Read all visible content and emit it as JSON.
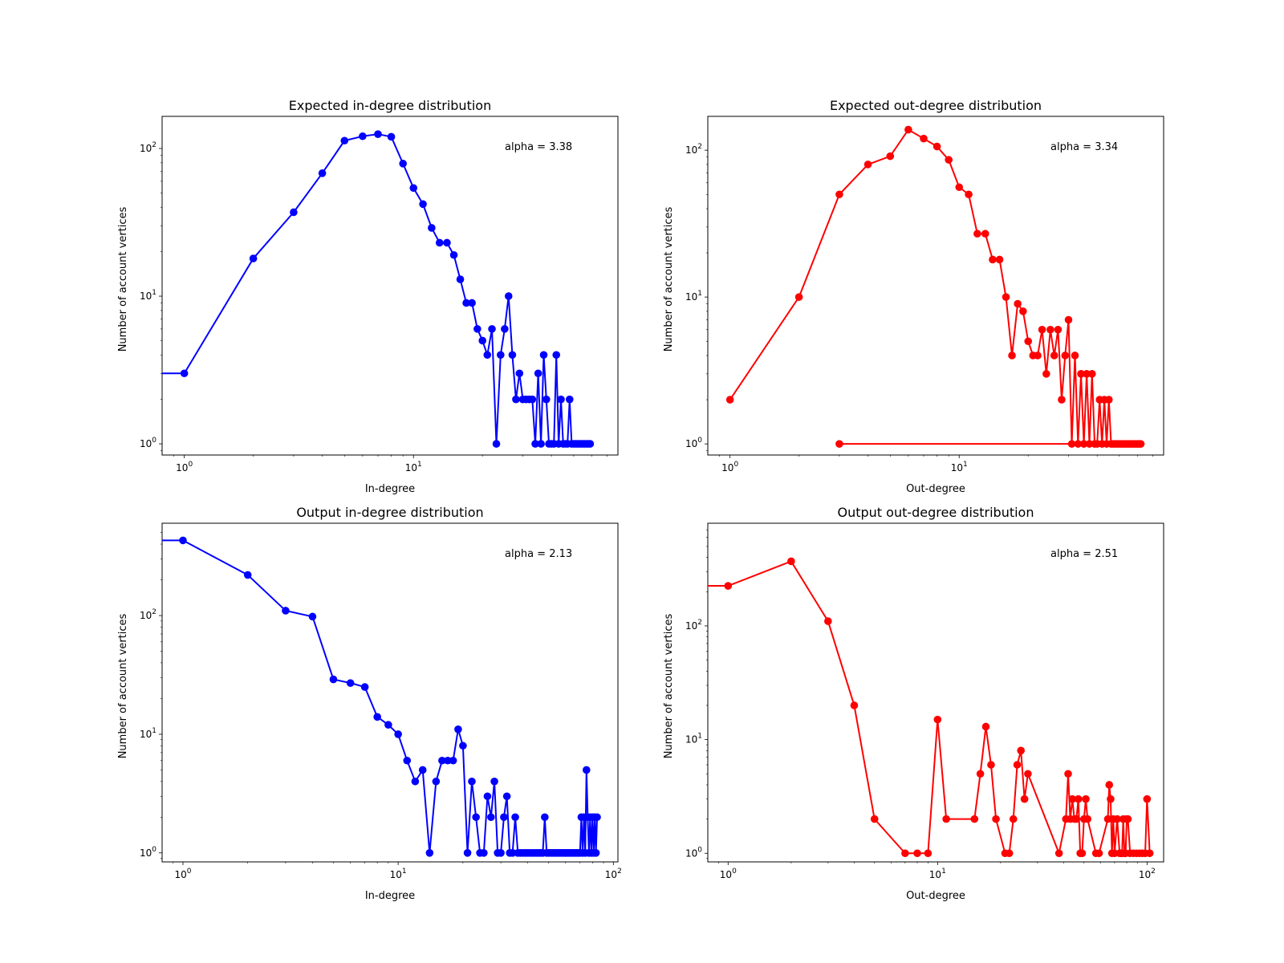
{
  "chart_data": [
    {
      "type": "line",
      "title": "Expected in-degree distribution",
      "xlabel": "In-degree",
      "ylabel": "Number of account vertices",
      "xscale": "log",
      "yscale": "log",
      "xlim": [
        0.8,
        78
      ],
      "ylim": [
        0.84,
        165
      ],
      "xticks": [
        {
          "value": 1,
          "label": "10^0"
        },
        {
          "value": 10,
          "label": "10^1"
        }
      ],
      "yticks": [
        {
          "value": 1,
          "label": "10^0"
        },
        {
          "value": 10,
          "label": "10^1"
        },
        {
          "value": 100,
          "label": "10^2"
        }
      ],
      "annotation": "alpha = 3.38",
      "color": "#0000ff",
      "series": [
        {
          "name": "Expected in-degree",
          "x": [
            0,
            1,
            2,
            3,
            4,
            5,
            6,
            7,
            8,
            9,
            10,
            11,
            12,
            13,
            14,
            15,
            16,
            17,
            18,
            19,
            20,
            21,
            22,
            23,
            24,
            25,
            26,
            27,
            28,
            29,
            30,
            31,
            32,
            33,
            34,
            35,
            36,
            37,
            38,
            39,
            40,
            41,
            42,
            43,
            44,
            45,
            46,
            47,
            48,
            49,
            50,
            51,
            52,
            53,
            54,
            55,
            56,
            57,
            58,
            59
          ],
          "y": [
            3,
            3,
            18,
            37,
            68,
            113,
            121,
            125,
            120,
            79,
            54,
            42,
            29,
            23,
            23,
            19,
            13,
            9,
            9,
            6,
            5,
            4,
            6,
            1,
            4,
            6,
            10,
            4,
            2,
            3,
            2,
            2,
            2,
            2,
            1,
            3,
            1,
            4,
            2,
            1,
            1,
            1,
            4,
            1,
            2,
            1,
            1,
            1,
            2,
            1,
            1,
            1,
            1,
            1,
            1,
            1,
            1,
            1,
            1,
            1
          ]
        }
      ]
    },
    {
      "type": "line",
      "title": "Expected out-degree distribution",
      "xlabel": "Out-degree",
      "ylabel": "Number of account vertices",
      "xscale": "log",
      "yscale": "log",
      "xlim": [
        0.8,
        78
      ],
      "ylim": [
        0.84,
        170
      ],
      "xticks": [
        {
          "value": 1,
          "label": "10^0"
        },
        {
          "value": 10,
          "label": "10^1"
        }
      ],
      "yticks": [
        {
          "value": 1,
          "label": "10^0"
        },
        {
          "value": 10,
          "label": "10^1"
        },
        {
          "value": 100,
          "label": "10^2"
        }
      ],
      "annotation": "alpha = 3.34",
      "color": "#ff0000",
      "series": [
        {
          "name": "Expected out-degree",
          "x": [
            1,
            2,
            3,
            4,
            5,
            6,
            7,
            8,
            9,
            10,
            11,
            12,
            13,
            14,
            15,
            16,
            17,
            18,
            19,
            20,
            21,
            22,
            23,
            24,
            25,
            26,
            27,
            28,
            29,
            30,
            31,
            32,
            33,
            34,
            35,
            36,
            37,
            38,
            39,
            40,
            41,
            42,
            43,
            44,
            45,
            46,
            47,
            48,
            49,
            50,
            51,
            52,
            53,
            54,
            55,
            56,
            57,
            58,
            59,
            60,
            61,
            62,
            3
          ],
          "y": [
            2,
            10,
            50,
            80,
            91,
            138,
            120,
            106,
            86,
            56,
            50,
            27,
            27,
            18,
            18,
            10,
            4,
            9,
            8,
            5,
            4,
            4,
            6,
            3,
            6,
            4,
            6,
            2,
            4,
            7,
            1,
            4,
            1,
            3,
            1,
            3,
            1,
            3,
            1,
            1,
            2,
            1,
            2,
            1,
            2,
            1,
            1,
            1,
            1,
            1,
            1,
            1,
            1,
            1,
            1,
            1,
            1,
            1,
            1,
            1,
            1,
            1,
            1
          ]
        }
      ]
    },
    {
      "type": "line",
      "title": "Output in-degree distribution",
      "xlabel": "In-degree",
      "ylabel": "Number of account vertices",
      "xscale": "log",
      "yscale": "log",
      "xlim": [
        0.8,
        105
      ],
      "ylim": [
        0.84,
        600
      ],
      "xticks": [
        {
          "value": 1,
          "label": "10^0"
        },
        {
          "value": 10,
          "label": "10^1"
        },
        {
          "value": 100,
          "label": "10^2"
        }
      ],
      "yticks": [
        {
          "value": 1,
          "label": "10^0"
        },
        {
          "value": 10,
          "label": "10^1"
        },
        {
          "value": 100,
          "label": "10^2"
        }
      ],
      "annotation": "alpha = 2.13",
      "color": "#0000ff",
      "series": [
        {
          "name": "Output in-degree",
          "x": [
            0,
            1,
            2,
            3,
            4,
            5,
            6,
            7,
            8,
            9,
            10,
            11,
            12,
            13,
            14,
            15,
            16,
            17,
            18,
            19,
            20,
            21,
            22,
            23,
            24,
            25,
            26,
            27,
            28,
            29,
            30,
            31,
            32,
            33,
            34,
            35,
            36,
            37,
            38,
            39,
            40,
            41,
            42,
            43,
            44,
            45,
            46,
            47,
            48,
            49,
            50,
            51,
            52,
            53,
            54,
            55,
            56,
            57,
            58,
            59,
            60,
            61,
            62,
            63,
            64,
            65,
            66,
            67,
            68,
            69,
            70,
            71,
            72,
            73,
            74,
            75,
            76,
            77,
            78,
            79,
            80,
            81,
            82,
            83,
            84
          ],
          "y": [
            430,
            430,
            220,
            110,
            98,
            29,
            27,
            25,
            14,
            12,
            10,
            6,
            4,
            5,
            1,
            4,
            6,
            6,
            6,
            11,
            8,
            1,
            4,
            2,
            1,
            1,
            3,
            2,
            4,
            1,
            1,
            2,
            3,
            1,
            1,
            2,
            1,
            1,
            1,
            1,
            1,
            1,
            1,
            1,
            1,
            1,
            1,
            1,
            2,
            1,
            1,
            1,
            1,
            1,
            1,
            1,
            1,
            1,
            1,
            1,
            1,
            1,
            1,
            1,
            1,
            1,
            1,
            1,
            1,
            1,
            1,
            2,
            1,
            2,
            1,
            5,
            2,
            1,
            2,
            1,
            2,
            1,
            2,
            1,
            2
          ]
        }
      ]
    },
    {
      "type": "line",
      "title": "Output out-degree distribution",
      "xlabel": "Out-degree",
      "ylabel": "Number of account vertices",
      "xscale": "log",
      "yscale": "log",
      "xlim": [
        0.8,
        120
      ],
      "ylim": [
        0.84,
        800
      ],
      "xticks": [
        {
          "value": 1,
          "label": "10^0"
        },
        {
          "value": 10,
          "label": "10^1"
        },
        {
          "value": 100,
          "label": "10^2"
        }
      ],
      "yticks": [
        {
          "value": 1,
          "label": "10^0"
        },
        {
          "value": 10,
          "label": "10^1"
        },
        {
          "value": 100,
          "label": "10^2"
        }
      ],
      "annotation": "alpha = 2.51",
      "color": "#ff0000",
      "series": [
        {
          "name": "Output out-degree",
          "x": [
            0,
            1,
            2,
            3,
            4,
            5,
            7,
            8,
            9,
            10,
            11,
            15,
            16,
            17,
            18,
            19,
            21,
            22,
            23,
            24,
            25,
            26,
            27,
            38,
            41,
            42,
            43,
            44,
            45,
            46,
            47,
            48,
            49,
            50,
            51,
            52,
            57,
            59,
            65,
            66,
            67,
            68,
            69,
            70,
            72,
            74,
            75,
            76,
            77,
            78,
            79,
            80,
            81,
            83,
            86,
            89,
            92,
            95,
            98,
            100,
            103
          ],
          "y": [
            225,
            225,
            370,
            110,
            20,
            2,
            1,
            1,
            1,
            15,
            2,
            2,
            5,
            13,
            6,
            2,
            1,
            1,
            2,
            6,
            8,
            3,
            5,
            1,
            2,
            5,
            2,
            3,
            2,
            2,
            3,
            1,
            1,
            2,
            3,
            2,
            1,
            1,
            2,
            4,
            3,
            1,
            2,
            1,
            2,
            1,
            1,
            1,
            2,
            1,
            1,
            2,
            2,
            1,
            1,
            1,
            1,
            1,
            1,
            3,
            1
          ]
        }
      ]
    }
  ]
}
